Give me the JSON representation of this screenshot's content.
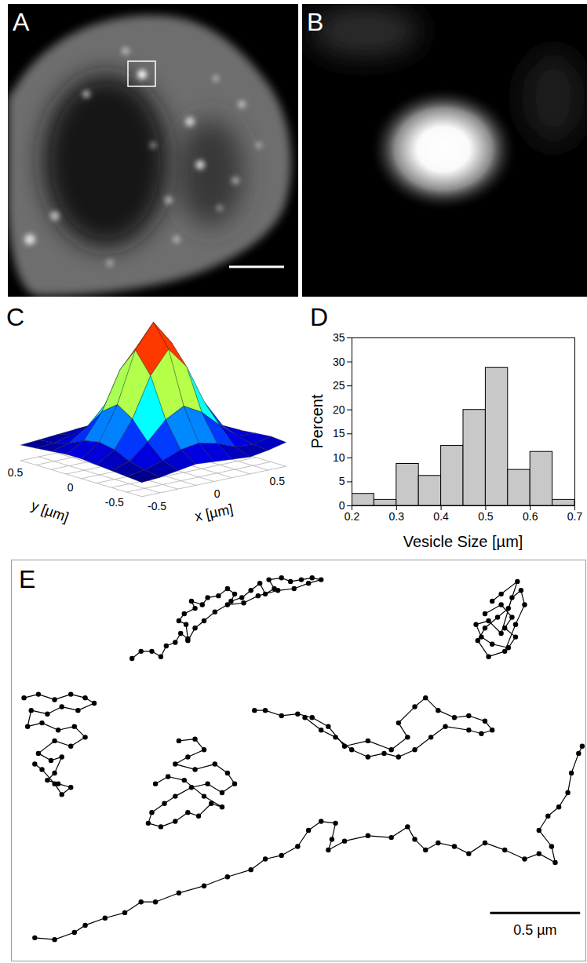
{
  "images": [
    {
      "panel": "A",
      "type": "image"
    },
    {
      "panel": "B",
      "type": "image"
    }
  ],
  "chart_data": [
    {
      "panel": "C",
      "type": "surface",
      "xlabel": "x [µm]",
      "ylabel": "y [µm]",
      "x": [
        -0.6,
        -0.45,
        -0.3,
        -0.15,
        0,
        0.15,
        0.3,
        0.45,
        0.6
      ],
      "y": [
        -0.6,
        -0.45,
        -0.3,
        -0.15,
        0,
        0.15,
        0.3,
        0.45,
        0.6
      ],
      "z": [
        [
          0.1,
          0.11,
          0.13,
          0.15,
          0.14,
          0.13,
          0.12,
          0.14,
          0.17
        ],
        [
          0.11,
          0.13,
          0.17,
          0.22,
          0.24,
          0.21,
          0.16,
          0.15,
          0.18
        ],
        [
          0.12,
          0.16,
          0.27,
          0.4,
          0.47,
          0.4,
          0.28,
          0.18,
          0.17
        ],
        [
          0.13,
          0.21,
          0.4,
          0.68,
          0.84,
          0.69,
          0.41,
          0.22,
          0.16
        ],
        [
          0.14,
          0.23,
          0.47,
          0.83,
          1.0,
          0.83,
          0.47,
          0.24,
          0.15
        ],
        [
          0.14,
          0.21,
          0.39,
          0.66,
          0.81,
          0.66,
          0.38,
          0.2,
          0.13
        ],
        [
          0.13,
          0.16,
          0.25,
          0.38,
          0.45,
          0.38,
          0.25,
          0.15,
          0.12
        ],
        [
          0.12,
          0.13,
          0.16,
          0.2,
          0.22,
          0.2,
          0.15,
          0.12,
          0.11
        ],
        [
          0.11,
          0.12,
          0.13,
          0.14,
          0.14,
          0.13,
          0.12,
          0.11,
          0.1
        ]
      ],
      "xlim": [
        -0.6,
        0.6
      ],
      "ylim": [
        -0.6,
        0.6
      ],
      "xticks": [
        -0.5,
        0,
        0.5
      ],
      "yticks": [
        -0.5,
        0,
        0.5
      ]
    },
    {
      "panel": "D",
      "type": "histogram",
      "xlabel": "Vesicle Size [µm]",
      "ylabel": "Percent",
      "bins": [
        0.2,
        0.25,
        0.3,
        0.35,
        0.4,
        0.45,
        0.5,
        0.55,
        0.6,
        0.65,
        0.7
      ],
      "values": [
        2.5,
        1.25,
        8.75,
        6.25,
        12.5,
        20,
        28.75,
        7.5,
        11.25,
        1.25
      ],
      "color": "#c8c8c8",
      "xlim": [
        0.2,
        0.7
      ],
      "ylim": [
        0,
        35
      ],
      "xticks": [
        0.2,
        0.3,
        0.4,
        0.5,
        0.6,
        0.7
      ],
      "yticks": [
        0,
        5,
        10,
        15,
        20,
        25,
        30,
        35
      ]
    },
    {
      "panel": "E",
      "type": "line",
      "marker": "circle",
      "line_style": "solid",
      "color": "#000000",
      "tick_labels": false,
      "xlim": [
        0,
        3.19
      ],
      "ylim": [
        0,
        2.24
      ],
      "scale_bar": {
        "length": 0.5,
        "label": "0.5 µm"
      },
      "series": [
        {
          "x": [
            0.67,
            0.72,
            0.78,
            0.83,
            0.86,
            0.91,
            0.94,
            0.98,
            0.97,
            0.93,
            0.96,
            1.02,
            1.0,
            1.06,
            1.09,
            1.15,
            1.2,
            1.24,
            1.22,
            1.28,
            1.33,
            1.38,
            1.41,
            1.46,
            1.43,
            1.5,
            1.55,
            1.61,
            1.67,
            1.72,
            1.65,
            1.57,
            1.48,
            1.37,
            1.29,
            1.2,
            1.13,
            1.07,
            1.02,
            0.98
          ],
          "y": [
            1.69,
            1.73,
            1.73,
            1.7,
            1.76,
            1.78,
            1.83,
            1.8,
            1.88,
            1.9,
            1.94,
            1.97,
            2.01,
            1.99,
            2.03,
            2.04,
            2.08,
            2.05,
            2.01,
            2.03,
            2.07,
            2.11,
            2.05,
            2.08,
            2.13,
            2.14,
            2.12,
            2.13,
            2.14,
            2.13,
            2.11,
            2.08,
            2.07,
            2.04,
            2.0,
            1.99,
            1.95,
            1.9,
            1.86,
            1.79
          ]
        },
        {
          "x": [
            2.63,
            2.72,
            2.78,
            2.74,
            2.8,
            2.76,
            2.67,
            2.61,
            2.58,
            2.65,
            2.72,
            2.78,
            2.83,
            2.85,
            2.8,
            2.74,
            2.65,
            2.59,
            2.63,
            2.7,
            2.76,
            2.81,
            2.72,
            2.67
          ],
          "y": [
            1.94,
            1.99,
            1.92,
            1.86,
            1.81,
            1.75,
            1.77,
            1.81,
            1.88,
            1.9,
            1.83,
            2.03,
            2.07,
            1.99,
            1.88,
            1.73,
            1.7,
            1.79,
            1.86,
            1.92,
            1.97,
            2.12,
            2.05,
            2.01
          ]
        },
        {
          "x": [
            0.07,
            0.15,
            0.24,
            0.33,
            0.41,
            0.46,
            0.37,
            0.28,
            0.2,
            0.11,
            0.09,
            0.17,
            0.26,
            0.35,
            0.41,
            0.33,
            0.24,
            0.15,
            0.22,
            0.28,
            0.24,
            0.2,
            0.26,
            0.33,
            0.28,
            0.24,
            0.17,
            0.13
          ],
          "y": [
            1.47,
            1.49,
            1.46,
            1.49,
            1.47,
            1.44,
            1.4,
            1.42,
            1.38,
            1.4,
            1.31,
            1.33,
            1.29,
            1.31,
            1.25,
            1.2,
            1.23,
            1.16,
            1.12,
            1.14,
            1.05,
            1.01,
            0.99,
            0.97,
            0.93,
            0.99,
            1.07,
            1.1
          ]
        },
        {
          "x": [
            0.93,
            1.02,
            1.07,
            0.98,
            0.91,
            1.02,
            1.13,
            1.2,
            1.24,
            1.17,
            1.09,
            1.0,
            0.91,
            0.85,
            0.78,
            0.76,
            0.83,
            0.91,
            0.98,
            1.04,
            1.11,
            1.17,
            1.07,
            0.96,
            0.87,
            0.8
          ],
          "y": [
            1.23,
            1.24,
            1.18,
            1.14,
            1.1,
            1.07,
            1.1,
            1.05,
            0.99,
            0.94,
            0.99,
            0.97,
            0.92,
            0.88,
            0.83,
            0.77,
            0.75,
            0.78,
            0.83,
            0.81,
            0.88,
            0.86,
            0.92,
            1.01,
            1.03,
            0.99
          ]
        },
        {
          "x": [
            1.35,
            1.41,
            1.5,
            1.59,
            1.67,
            1.76,
            1.85,
            1.98,
            2.11,
            2.2,
            2.15,
            2.24,
            2.3,
            2.37,
            2.46,
            2.54,
            2.63,
            2.67,
            2.61,
            2.54,
            2.41,
            2.33,
            2.24,
            2.15,
            2.07,
            1.98,
            1.89,
            1.8,
            1.72,
            1.63
          ],
          "y": [
            1.4,
            1.4,
            1.37,
            1.38,
            1.36,
            1.31,
            1.2,
            1.23,
            1.18,
            1.25,
            1.33,
            1.42,
            1.47,
            1.4,
            1.36,
            1.37,
            1.34,
            1.29,
            1.27,
            1.29,
            1.31,
            1.25,
            1.18,
            1.14,
            1.16,
            1.14,
            1.18,
            1.25,
            1.29,
            1.36
          ]
        },
        {
          "x": [
            0.13,
            0.24,
            0.35,
            0.41,
            0.52,
            0.63,
            0.72,
            0.8,
            0.93,
            1.07,
            1.2,
            1.33,
            1.41,
            1.5,
            1.59,
            1.65,
            1.72,
            1.8,
            1.78,
            1.76,
            1.85,
            1.98,
            2.11,
            2.2,
            2.24,
            2.3,
            2.37,
            2.46,
            2.54,
            2.63,
            2.74,
            2.85,
            2.93,
            3.02,
            3.0,
            2.93,
            2.98,
            3.04,
            3.09,
            3.11,
            3.15,
            3.17
          ],
          "y": [
            0.13,
            0.12,
            0.16,
            0.2,
            0.24,
            0.27,
            0.33,
            0.33,
            0.38,
            0.42,
            0.47,
            0.51,
            0.57,
            0.59,
            0.64,
            0.73,
            0.78,
            0.77,
            0.68,
            0.62,
            0.67,
            0.7,
            0.69,
            0.75,
            0.68,
            0.62,
            0.66,
            0.64,
            0.6,
            0.66,
            0.62,
            0.57,
            0.6,
            0.55,
            0.64,
            0.73,
            0.81,
            0.86,
            0.94,
            1.05,
            1.16,
            1.2
          ]
        }
      ]
    }
  ]
}
